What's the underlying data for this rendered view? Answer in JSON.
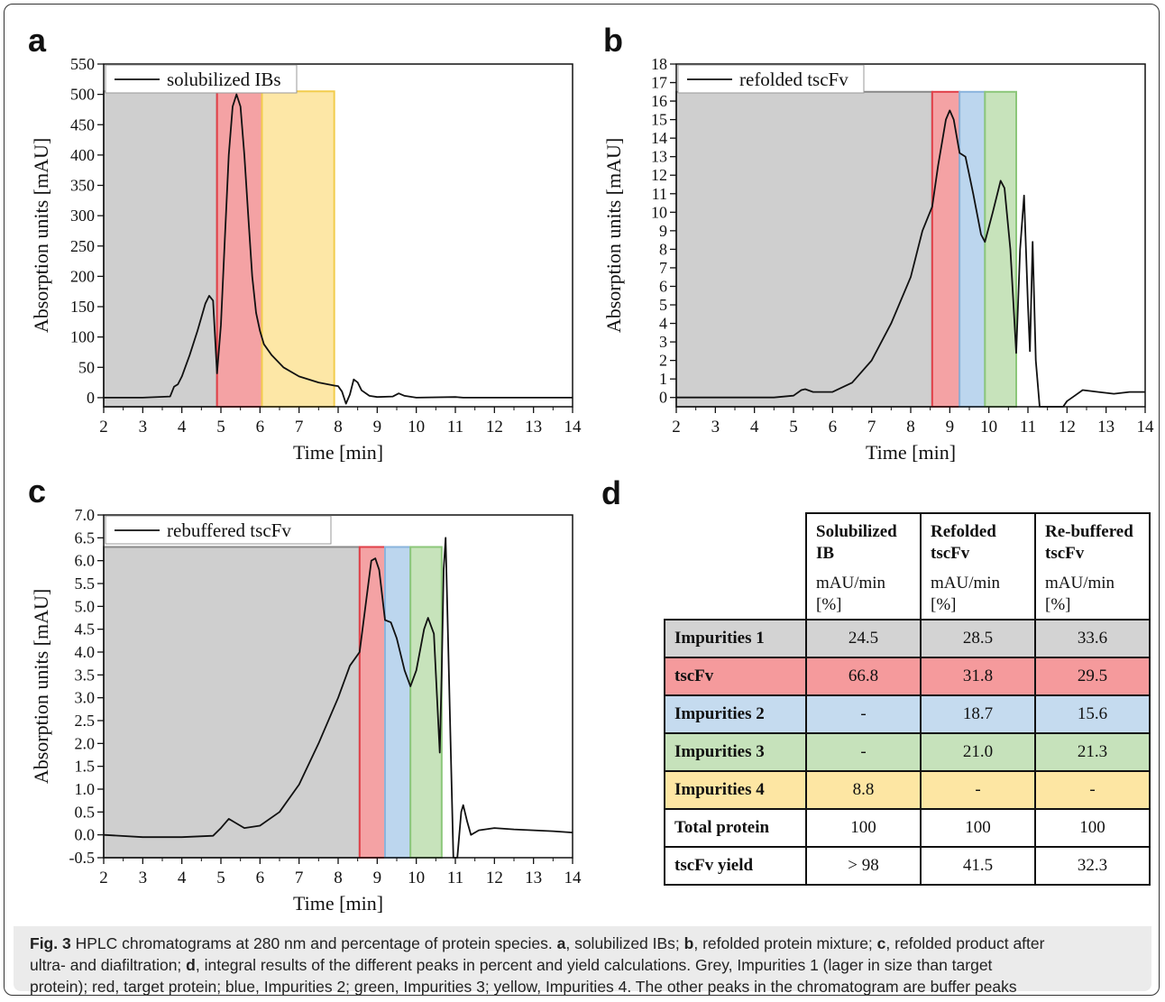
{
  "panels": {
    "a": {
      "letter": "a"
    },
    "b": {
      "letter": "b"
    },
    "c": {
      "letter": "c"
    },
    "d": {
      "letter": "d"
    }
  },
  "chart_data": [
    {
      "id": "a",
      "type": "line",
      "legend": "solubilized IBs",
      "legend_position": "top-left",
      "xlabel": "Time [min]",
      "ylabel": "Absorption units [mAU]",
      "xlim": [
        2,
        14
      ],
      "ylim": [
        -15,
        550
      ],
      "xticks": [
        2,
        3,
        4,
        5,
        6,
        7,
        8,
        9,
        10,
        11,
        12,
        13,
        14
      ],
      "yticks": [
        0,
        50,
        100,
        150,
        200,
        250,
        300,
        350,
        400,
        450,
        500,
        550
      ],
      "ytick_decimals": 0,
      "regions": [
        {
          "species": "Impurities 1",
          "x0": 2.0,
          "x1": 4.9,
          "top": 505,
          "fill": "#cfcfcf",
          "stroke": "#8a8a8a"
        },
        {
          "species": "tscFv",
          "x0": 4.9,
          "x1": 6.05,
          "top": 505,
          "fill": "#f4a2a4",
          "stroke": "#e04048"
        },
        {
          "species": "Impurities 4",
          "x0": 6.05,
          "x1": 7.9,
          "top": 505,
          "fill": "#fde7a6",
          "stroke": "#f2cc4c"
        }
      ],
      "points": [
        [
          2.0,
          0
        ],
        [
          3.0,
          0
        ],
        [
          3.7,
          2
        ],
        [
          3.8,
          18
        ],
        [
          3.9,
          22
        ],
        [
          4.0,
          35
        ],
        [
          4.2,
          70
        ],
        [
          4.4,
          110
        ],
        [
          4.6,
          155
        ],
        [
          4.7,
          168
        ],
        [
          4.8,
          160
        ],
        [
          4.9,
          40
        ],
        [
          5.0,
          120
        ],
        [
          5.1,
          260
        ],
        [
          5.2,
          400
        ],
        [
          5.3,
          480
        ],
        [
          5.4,
          500
        ],
        [
          5.5,
          480
        ],
        [
          5.6,
          400
        ],
        [
          5.7,
          300
        ],
        [
          5.8,
          200
        ],
        [
          5.9,
          140
        ],
        [
          6.0,
          110
        ],
        [
          6.1,
          88
        ],
        [
          6.3,
          70
        ],
        [
          6.6,
          50
        ],
        [
          7.0,
          35
        ],
        [
          7.5,
          25
        ],
        [
          7.9,
          20
        ],
        [
          8.0,
          19
        ],
        [
          8.1,
          10
        ],
        [
          8.2,
          -10
        ],
        [
          8.3,
          5
        ],
        [
          8.4,
          30
        ],
        [
          8.5,
          25
        ],
        [
          8.6,
          12
        ],
        [
          8.8,
          3
        ],
        [
          9.0,
          1
        ],
        [
          9.4,
          2
        ],
        [
          9.55,
          7
        ],
        [
          9.7,
          3
        ],
        [
          10,
          0
        ],
        [
          11,
          1
        ],
        [
          11.2,
          0
        ],
        [
          14,
          0
        ]
      ]
    },
    {
      "id": "b",
      "type": "line",
      "legend": "refolded tscFv",
      "legend_position": "top-left",
      "xlabel": "Time [min]",
      "ylabel": "Absorption units [mAU]",
      "xlim": [
        2,
        14
      ],
      "ylim": [
        -0.5,
        18
      ],
      "xticks": [
        2,
        3,
        4,
        5,
        6,
        7,
        8,
        9,
        10,
        11,
        12,
        13,
        14
      ],
      "yticks": [
        0,
        1,
        2,
        3,
        4,
        5,
        6,
        7,
        8,
        9,
        10,
        11,
        12,
        13,
        14,
        15,
        16,
        17,
        18
      ],
      "ytick_decimals": 0,
      "regions": [
        {
          "species": "Impurities 1",
          "x0": 2.0,
          "x1": 8.55,
          "top": 16.5,
          "fill": "#cfcfcf",
          "stroke": "#8a8a8a"
        },
        {
          "species": "tscFv",
          "x0": 8.55,
          "x1": 9.25,
          "top": 16.5,
          "fill": "#f4a2a4",
          "stroke": "#e04048"
        },
        {
          "species": "Impurities 2",
          "x0": 9.25,
          "x1": 9.9,
          "top": 16.5,
          "fill": "#bcd6ee",
          "stroke": "#8ab4dc"
        },
        {
          "species": "Impurities 3",
          "x0": 9.9,
          "x1": 10.7,
          "top": 16.5,
          "fill": "#c7e3bb",
          "stroke": "#8cc77a"
        }
      ],
      "points": [
        [
          2.0,
          0
        ],
        [
          4.5,
          0
        ],
        [
          5.0,
          0.1
        ],
        [
          5.2,
          0.4
        ],
        [
          5.3,
          0.45
        ],
        [
          5.5,
          0.3
        ],
        [
          6.0,
          0.3
        ],
        [
          6.5,
          0.8
        ],
        [
          7.0,
          2.0
        ],
        [
          7.5,
          4.0
        ],
        [
          8.0,
          6.5
        ],
        [
          8.3,
          9.0
        ],
        [
          8.55,
          10.3
        ],
        [
          8.7,
          12.5
        ],
        [
          8.9,
          15.0
        ],
        [
          9.0,
          15.5
        ],
        [
          9.1,
          15.0
        ],
        [
          9.25,
          13.2
        ],
        [
          9.4,
          13.0
        ],
        [
          9.6,
          11.0
        ],
        [
          9.8,
          8.8
        ],
        [
          9.9,
          8.4
        ],
        [
          10.1,
          10.0
        ],
        [
          10.3,
          11.7
        ],
        [
          10.4,
          11.3
        ],
        [
          10.55,
          8.0
        ],
        [
          10.7,
          2.4
        ],
        [
          10.8,
          8.0
        ],
        [
          10.9,
          10.9
        ],
        [
          11.0,
          5.0
        ],
        [
          11.05,
          2.5
        ],
        [
          11.12,
          8.4
        ],
        [
          11.2,
          2.0
        ],
        [
          11.3,
          -0.5
        ],
        [
          11.9,
          -0.5
        ],
        [
          12.0,
          -0.2
        ],
        [
          12.2,
          0.1
        ],
        [
          12.4,
          0.4
        ],
        [
          12.8,
          0.3
        ],
        [
          13.2,
          0.2
        ],
        [
          13.6,
          0.3
        ],
        [
          14.0,
          0.3
        ]
      ]
    },
    {
      "id": "c",
      "type": "line",
      "legend": "rebuffered tscFv",
      "legend_position": "top-left",
      "xlabel": "Time [min]",
      "ylabel": "Absorption units [mAU]",
      "xlim": [
        2,
        14
      ],
      "ylim": [
        -0.5,
        7.0
      ],
      "xticks": [
        2,
        3,
        4,
        5,
        6,
        7,
        8,
        9,
        10,
        11,
        12,
        13,
        14
      ],
      "yticks": [
        -0.5,
        0.0,
        0.5,
        1.0,
        1.5,
        2.0,
        2.5,
        3.0,
        3.5,
        4.0,
        4.5,
        5.0,
        5.5,
        6.0,
        6.5,
        7.0
      ],
      "ytick_decimals": 1,
      "regions": [
        {
          "species": "Impurities 1",
          "x0": 2.0,
          "x1": 8.55,
          "top": 6.3,
          "fill": "#cfcfcf",
          "stroke": "#8a8a8a"
        },
        {
          "species": "tscFv",
          "x0": 8.55,
          "x1": 9.2,
          "top": 6.3,
          "fill": "#f4a2a4",
          "stroke": "#e04048"
        },
        {
          "species": "Impurities 2",
          "x0": 9.2,
          "x1": 9.85,
          "top": 6.3,
          "fill": "#bcd6ee",
          "stroke": "#8ab4dc"
        },
        {
          "species": "Impurities 3",
          "x0": 9.85,
          "x1": 10.65,
          "top": 6.3,
          "fill": "#c7e3bb",
          "stroke": "#8cc77a"
        }
      ],
      "points": [
        [
          2.0,
          0
        ],
        [
          3.0,
          -0.05
        ],
        [
          4.0,
          -0.05
        ],
        [
          4.8,
          -0.02
        ],
        [
          5.0,
          0.15
        ],
        [
          5.2,
          0.35
        ],
        [
          5.4,
          0.25
        ],
        [
          5.6,
          0.15
        ],
        [
          6.0,
          0.2
        ],
        [
          6.5,
          0.5
        ],
        [
          7.0,
          1.1
        ],
        [
          7.5,
          2.0
        ],
        [
          8.0,
          3.0
        ],
        [
          8.3,
          3.7
        ],
        [
          8.55,
          4.0
        ],
        [
          8.7,
          5.0
        ],
        [
          8.85,
          6.0
        ],
        [
          8.95,
          6.05
        ],
        [
          9.05,
          5.8
        ],
        [
          9.2,
          4.7
        ],
        [
          9.35,
          4.65
        ],
        [
          9.5,
          4.3
        ],
        [
          9.7,
          3.6
        ],
        [
          9.85,
          3.25
        ],
        [
          10.0,
          3.6
        ],
        [
          10.2,
          4.5
        ],
        [
          10.3,
          4.75
        ],
        [
          10.45,
          4.4
        ],
        [
          10.6,
          1.8
        ],
        [
          10.65,
          3.5
        ],
        [
          10.7,
          5.8
        ],
        [
          10.75,
          6.5
        ],
        [
          10.85,
          3.0
        ],
        [
          10.95,
          -0.5
        ],
        [
          11.05,
          -0.5
        ],
        [
          11.15,
          0.5
        ],
        [
          11.2,
          0.65
        ],
        [
          11.3,
          0.3
        ],
        [
          11.4,
          0.0
        ],
        [
          11.6,
          0.1
        ],
        [
          12.0,
          0.15
        ],
        [
          12.5,
          0.12
        ],
        [
          13.0,
          0.1
        ],
        [
          13.5,
          0.08
        ],
        [
          14.0,
          0.05
        ]
      ]
    }
  ],
  "table": {
    "headers": [
      {
        "title": "Solubilized IB",
        "unit": "mAU/min [%]"
      },
      {
        "title": "Refolded tscFv",
        "unit": "mAU/min [%]"
      },
      {
        "title": "Re-buffered tscFv",
        "unit": "mAU/min [%]"
      }
    ],
    "rows": [
      {
        "label": "Impurities 1",
        "values": [
          "24.5",
          "28.5",
          "33.6"
        ],
        "color": "#d3d3d3"
      },
      {
        "label": "tscFv",
        "values": [
          "66.8",
          "31.8",
          "29.5"
        ],
        "color": "#f59a9c"
      },
      {
        "label": "Impurities 2",
        "values": [
          "-",
          "18.7",
          "15.6"
        ],
        "color": "#c5dbef"
      },
      {
        "label": "Impurities 3",
        "values": [
          "-",
          "21.0",
          "21.3"
        ],
        "color": "#c6e2bb"
      },
      {
        "label": "Impurities 4",
        "values": [
          "8.8",
          "-",
          "-"
        ],
        "color": "#fde6a3"
      },
      {
        "label": "Total protein",
        "values": [
          "100",
          "100",
          "100"
        ],
        "color": "#ffffff"
      },
      {
        "label": "tscFv yield",
        "values": [
          "> 98",
          "41.5",
          "32.3"
        ],
        "color": "#ffffff"
      }
    ]
  },
  "caption": {
    "fig_label": "Fig. 3",
    "lines": [
      [
        {
          "t": " HPLC chromatograms at 280 nm and percentage of protein species. ",
          "b": false
        },
        {
          "t": "a",
          "b": true
        },
        {
          "t": ", solubilized IBs; ",
          "b": false
        },
        {
          "t": "b",
          "b": true
        },
        {
          "t": ", refolded protein mixture; ",
          "b": false
        },
        {
          "t": "c",
          "b": true
        },
        {
          "t": ", refolded product after",
          "b": false
        }
      ],
      [
        {
          "t": "ultra- and diafiltration; ",
          "b": false
        },
        {
          "t": "d",
          "b": true
        },
        {
          "t": ", integral results of the different peaks in percent and yield calculations. Grey, Impurities 1 (lager in size than target",
          "b": false
        }
      ],
      [
        {
          "t": "protein); red, target protein; blue, Impurities 2; green, Impurities 3; yellow, Impurities 4. The other peaks in the chromatogram are buffer peaks",
          "b": false
        }
      ]
    ]
  }
}
